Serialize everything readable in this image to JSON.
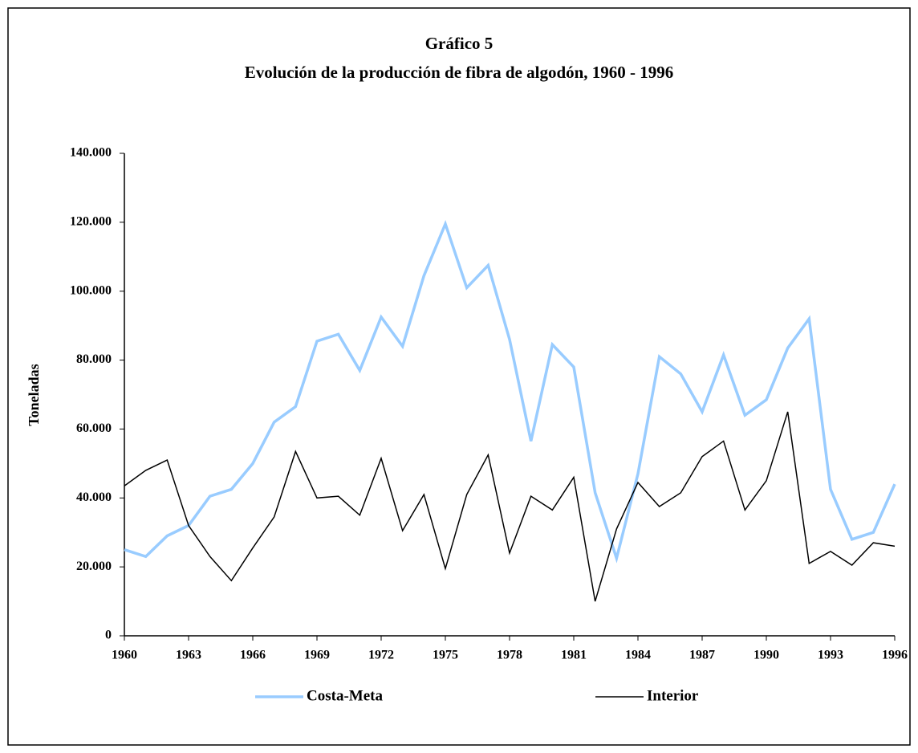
{
  "chart_data": {
    "type": "line",
    "title": "Gráfico 5",
    "subtitle": "Evolución de la producción de fibra de algodón, 1960 - 1996",
    "ylabel": "Toneladas",
    "x": [
      1960,
      1961,
      1962,
      1963,
      1964,
      1965,
      1966,
      1967,
      1968,
      1969,
      1970,
      1971,
      1972,
      1973,
      1974,
      1975,
      1976,
      1977,
      1978,
      1979,
      1980,
      1981,
      1982,
      1983,
      1984,
      1985,
      1986,
      1987,
      1988,
      1989,
      1990,
      1991,
      1992,
      1993,
      1994,
      1995,
      1996
    ],
    "series": [
      {
        "name": "Costa-Meta",
        "color": "#99ccff",
        "values": [
          25000,
          23000,
          29000,
          32000,
          40500,
          42500,
          50000,
          62000,
          66500,
          85500,
          87500,
          77000,
          92500,
          84000,
          104500,
          119500,
          101000,
          107500,
          86000,
          56500,
          84500,
          78000,
          41500,
          22500,
          47000,
          81000,
          76000,
          65000,
          81500,
          64000,
          68500,
          83500,
          92000,
          42500,
          28000,
          30000,
          44000
        ]
      },
      {
        "name": "Interior",
        "color": "#000000",
        "values": [
          43500,
          48000,
          51000,
          32000,
          23000,
          16000,
          25500,
          34500,
          53500,
          40000,
          40500,
          35000,
          51500,
          30500,
          41000,
          19500,
          41000,
          52500,
          24000,
          40500,
          36500,
          46000,
          10000,
          31000,
          44500,
          37500,
          41500,
          52000,
          56500,
          36500,
          45000,
          65000,
          21000,
          24500,
          20500,
          27000,
          26000
        ]
      }
    ],
    "xlim": [
      1960,
      1996
    ],
    "xticks": [
      1960,
      1963,
      1966,
      1969,
      1972,
      1975,
      1978,
      1981,
      1984,
      1987,
      1990,
      1993,
      1996
    ],
    "ylim": [
      0,
      140000
    ],
    "yticks": [
      0,
      {
        "value": 20000,
        "label": "20.000"
      },
      {
        "value": 40000,
        "label": "40.000"
      },
      {
        "value": 60000,
        "label": "60.000"
      },
      {
        "value": 80000,
        "label": "80.000"
      },
      {
        "value": 100000,
        "label": "100.000"
      },
      {
        "value": 120000,
        "label": "120.000"
      },
      {
        "value": 140000,
        "label": "140.000"
      }
    ],
    "legend": "bottom"
  }
}
